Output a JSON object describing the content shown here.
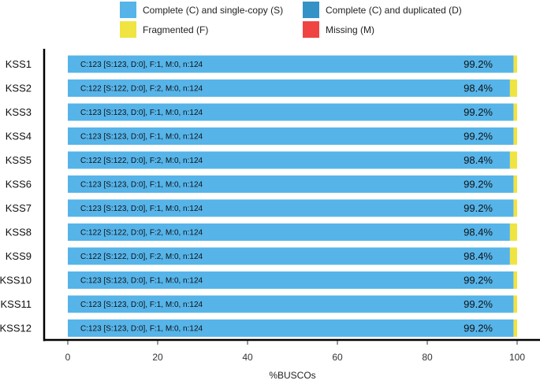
{
  "chart_data": {
    "type": "bar",
    "orientation": "horizontal",
    "stacked": true,
    "title": "",
    "xlabel": "%BUSCOs",
    "ylabel": "",
    "xlim": [
      0,
      100
    ],
    "xticks": [
      "0",
      "20",
      "40",
      "60",
      "80",
      "100"
    ],
    "legend_position": "top",
    "categories": [
      "KSS1",
      "KSS2",
      "KSS3",
      "KSS4",
      "KSS5",
      "KSS6",
      "KSS7",
      "KSS8",
      "KSS9",
      "KSS10",
      "KSS11",
      "KSS12"
    ],
    "series": [
      {
        "name": "Complete (C) and single-copy (S)",
        "color": "#56B4E9",
        "values": [
          99.2,
          98.4,
          99.2,
          99.2,
          98.4,
          99.2,
          99.2,
          98.4,
          98.4,
          99.2,
          99.2,
          99.2
        ]
      },
      {
        "name": "Complete (C) and duplicated (D)",
        "color": "#3492C7",
        "values": [
          0,
          0,
          0,
          0,
          0,
          0,
          0,
          0,
          0,
          0,
          0,
          0
        ]
      },
      {
        "name": "Fragmented (F)",
        "color": "#F0E442",
        "values": [
          0.8,
          1.6,
          0.8,
          0.8,
          1.6,
          0.8,
          0.8,
          1.6,
          1.6,
          0.8,
          0.8,
          0.8
        ]
      },
      {
        "name": "Missing (M)",
        "color": "#F04442",
        "values": [
          0,
          0,
          0,
          0,
          0,
          0,
          0,
          0,
          0,
          0,
          0,
          0
        ]
      }
    ],
    "bar_labels": [
      "C:123 [S:123, D:0], F:1, M:0, n:124",
      "C:122 [S:122, D:0], F:2, M:0, n:124",
      "C:123 [S:123, D:0], F:1, M:0, n:124",
      "C:123 [S:123, D:0], F:1, M:0, n:124",
      "C:122 [S:122, D:0], F:2, M:0, n:124",
      "C:123 [S:123, D:0], F:1, M:0, n:124",
      "C:123 [S:123, D:0], F:1, M:0, n:124",
      "C:122 [S:122, D:0], F:2, M:0, n:124",
      "C:122 [S:122, D:0], F:2, M:0, n:124",
      "C:123 [S:123, D:0], F:1, M:0, n:124",
      "C:123 [S:123, D:0], F:1, M:0, n:124",
      "C:123 [S:123, D:0], F:1, M:0, n:124"
    ],
    "percent_labels": [
      "99.2%",
      "98.4%",
      "99.2%",
      "99.2%",
      "98.4%",
      "99.2%",
      "99.2%",
      "98.4%",
      "98.4%",
      "99.2%",
      "99.2%",
      "99.2%"
    ]
  }
}
